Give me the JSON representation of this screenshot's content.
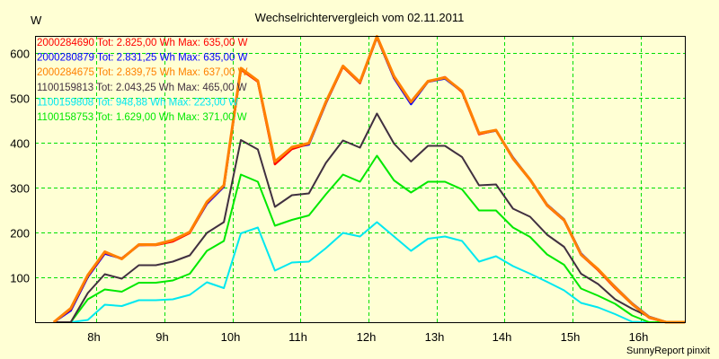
{
  "chart_data": {
    "type": "line",
    "title": "Wechselrichtervergleich vom 02.11.2011",
    "ylabel": "W",
    "xlabel": "",
    "footer": "SunnyReport pinxit",
    "ylim": [
      0,
      638
    ],
    "xlim": [
      7.1,
      16.65
    ],
    "yticks": [
      100,
      200,
      300,
      400,
      500,
      600
    ],
    "xticks": [
      8,
      9,
      10,
      11,
      12,
      13,
      14,
      15,
      16
    ],
    "xtick_labels": [
      "8h",
      "9h",
      "10h",
      "11h",
      "12h",
      "13h",
      "14h",
      "15h",
      "16h"
    ],
    "grid": true,
    "legend_position": "top-left",
    "x_start": 7.375,
    "x_step": 0.25,
    "series": [
      {
        "name": "2000284690",
        "legend": "2000284690 Tot: 2.825,00 Wh Max: 635,00 W",
        "color": "#ff0000",
        "values": [
          0,
          29,
          103,
          155,
          142,
          172,
          172,
          180,
          199,
          266,
          304,
          563,
          536,
          352,
          386,
          398,
          489,
          569,
          533,
          635,
          546,
          490,
          536,
          546,
          513,
          419,
          428,
          364,
          317,
          260,
          227,
          150,
          116,
          76,
          40,
          10,
          0,
          0,
          0
        ]
      },
      {
        "name": "2000280879",
        "legend": "2000280879 Tot: 2.831,25 Wh Max: 635,00 W",
        "color": "#0000ff",
        "values": [
          0,
          26,
          101,
          153,
          142,
          172,
          173,
          182,
          200,
          264,
          302,
          564,
          537,
          356,
          389,
          396,
          488,
          570,
          533,
          635,
          544,
          486,
          536,
          543,
          514,
          420,
          427,
          367,
          318,
          262,
          229,
          153,
          117,
          79,
          42,
          12,
          0,
          0,
          0
        ]
      },
      {
        "name": "2000284675",
        "legend": "2000284675 Tot: 2.839,75 Wh Max: 637,00 W",
        "color": "#ff8000",
        "values": [
          0,
          31,
          105,
          157,
          141,
          173,
          173,
          183,
          201,
          268,
          305,
          566,
          538,
          358,
          390,
          399,
          491,
          571,
          535,
          637,
          548,
          491,
          537,
          545,
          515,
          421,
          428,
          365,
          318,
          261,
          228,
          151,
          118,
          78,
          41,
          11,
          0,
          0,
          0
        ]
      },
      {
        "name": "1100159813",
        "legend": "1100159813 Tot: 2.043,25 Wh Max: 465,00 W",
        "color": "#403040",
        "values": [
          0,
          0,
          65,
          107,
          97,
          127,
          127,
          135,
          149,
          199,
          223,
          406,
          385,
          257,
          283,
          287,
          355,
          405,
          389,
          465,
          398,
          358,
          393,
          393,
          368,
          305,
          307,
          253,
          235,
          195,
          168,
          108,
          85,
          51,
          30,
          12,
          0,
          0,
          0
        ]
      },
      {
        "name": "1100159808",
        "legend": "1100159808 Tot: 948,88 Wh Max: 223,00 W",
        "color": "#00e8f0",
        "values": [
          0,
          0,
          5,
          39,
          36,
          49,
          49,
          51,
          61,
          89,
          76,
          198,
          211,
          115,
          133,
          135,
          165,
          199,
          191,
          223,
          191,
          159,
          186,
          191,
          181,
          135,
          147,
          125,
          108,
          90,
          71,
          43,
          33,
          18,
          1,
          0,
          0,
          0,
          0
        ]
      },
      {
        "name": "1100158753",
        "legend": "1100158753 Tot: 1.629,00 Wh Max: 371,00 W",
        "color": "#00e800",
        "values": [
          0,
          0,
          51,
          73,
          68,
          88,
          88,
          93,
          108,
          159,
          181,
          329,
          313,
          215,
          228,
          238,
          285,
          329,
          313,
          371,
          316,
          289,
          313,
          313,
          296,
          249,
          249,
          211,
          190,
          151,
          128,
          75,
          59,
          41,
          15,
          0,
          0,
          0,
          0
        ]
      }
    ]
  }
}
